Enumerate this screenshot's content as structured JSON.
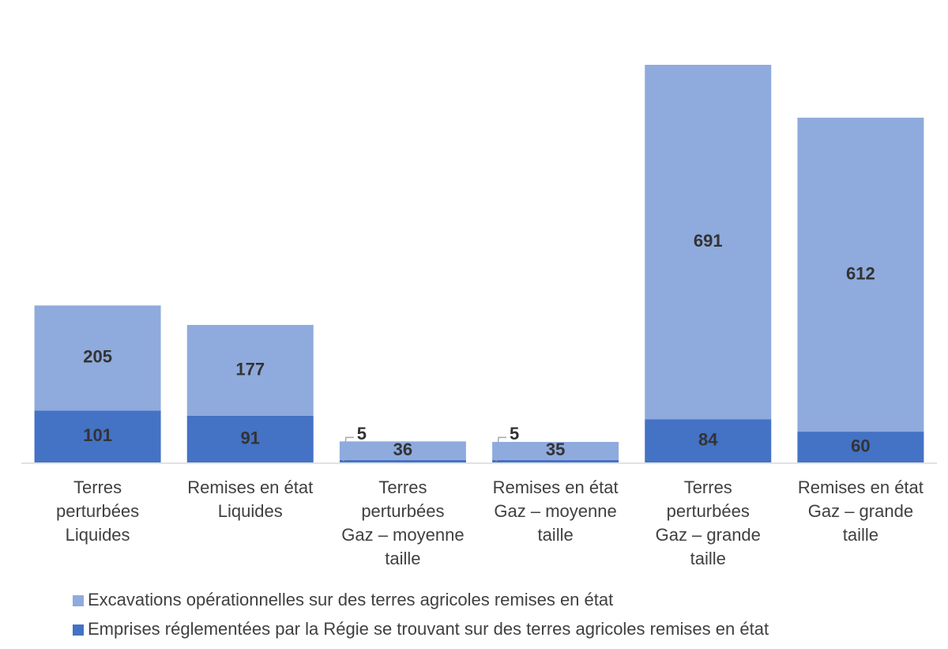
{
  "chart_data": {
    "type": "stacked_bar",
    "categories": [
      [
        "Terres",
        "perturbées",
        "Liquides"
      ],
      [
        "Remises en état",
        "Liquides"
      ],
      [
        "Terres",
        "perturbées",
        "Gaz – moyenne",
        "taille"
      ],
      [
        "Remises en état",
        "Gaz – moyenne",
        "taille"
      ],
      [
        "Terres",
        "perturbées",
        "Gaz – grande",
        "taille"
      ],
      [
        "Remises en état",
        "Gaz – grande",
        "taille"
      ]
    ],
    "series": [
      {
        "name": "Emprises réglementées par la Régie se trouvant sur des terres agricoles remises en état",
        "color": "#4472c4",
        "values": [
          101,
          91,
          5,
          5,
          84,
          60
        ]
      },
      {
        "name": "Excavations opérationnelles sur des terres agricoles remises en état",
        "color": "#8faadc",
        "values": [
          205,
          177,
          36,
          35,
          691,
          612
        ]
      }
    ]
  }
}
